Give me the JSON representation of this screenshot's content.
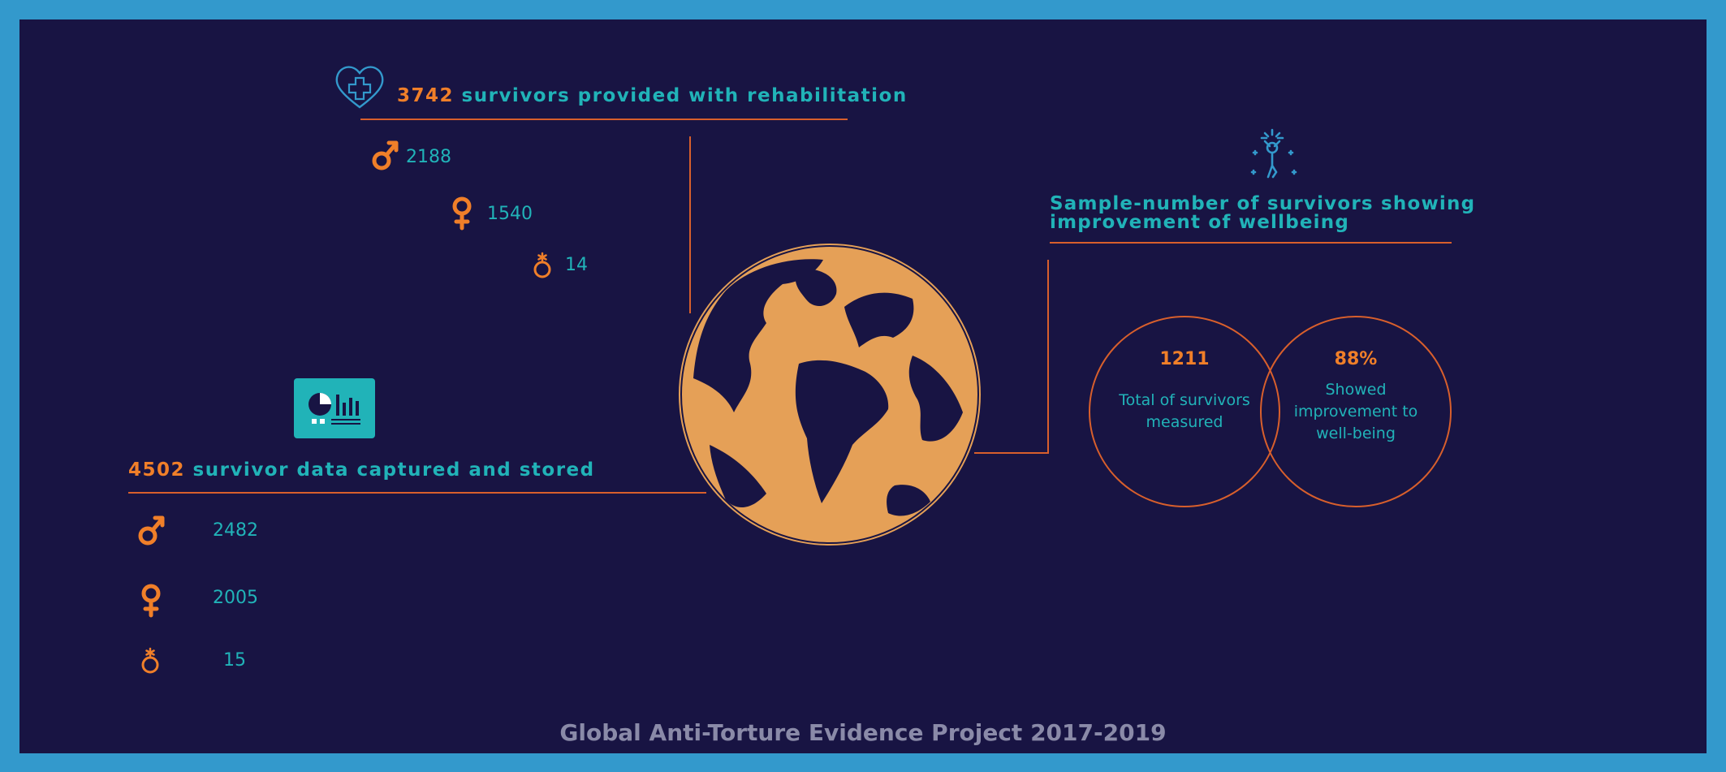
{
  "rehab": {
    "count": "3742",
    "label": "survivors provided with rehabilitation",
    "male": "2188",
    "female": "1540",
    "other": "14"
  },
  "captured": {
    "count": "4502",
    "label": "survivor data captured and stored",
    "male": "2482",
    "female": "2005",
    "other": "15"
  },
  "wellbeing": {
    "title_line1": "Sample-number of survivors showing",
    "title_line2": "improvement of wellbeing",
    "total_value": "1211",
    "total_label_line1": "Total of survivors",
    "total_label_line2": "measured",
    "improved_value": "88%",
    "improved_label_line1": "Showed",
    "improved_label_line2": "improvement to",
    "improved_label_line3": "well-being"
  },
  "footer": "Global Anti-Torture Evidence Project 2017-2019",
  "colors": {
    "background": "#181443",
    "frame": "#3399cc",
    "accent_orange": "#f07f29",
    "accent_teal": "#21b3b8",
    "line": "#d85f2c",
    "globe": "#e5a057"
  },
  "icons": [
    "heart-plus-icon",
    "male-icon",
    "female-icon",
    "intersex-icon",
    "dashboard-icon",
    "wellbeing-person-icon",
    "globe-icon"
  ]
}
